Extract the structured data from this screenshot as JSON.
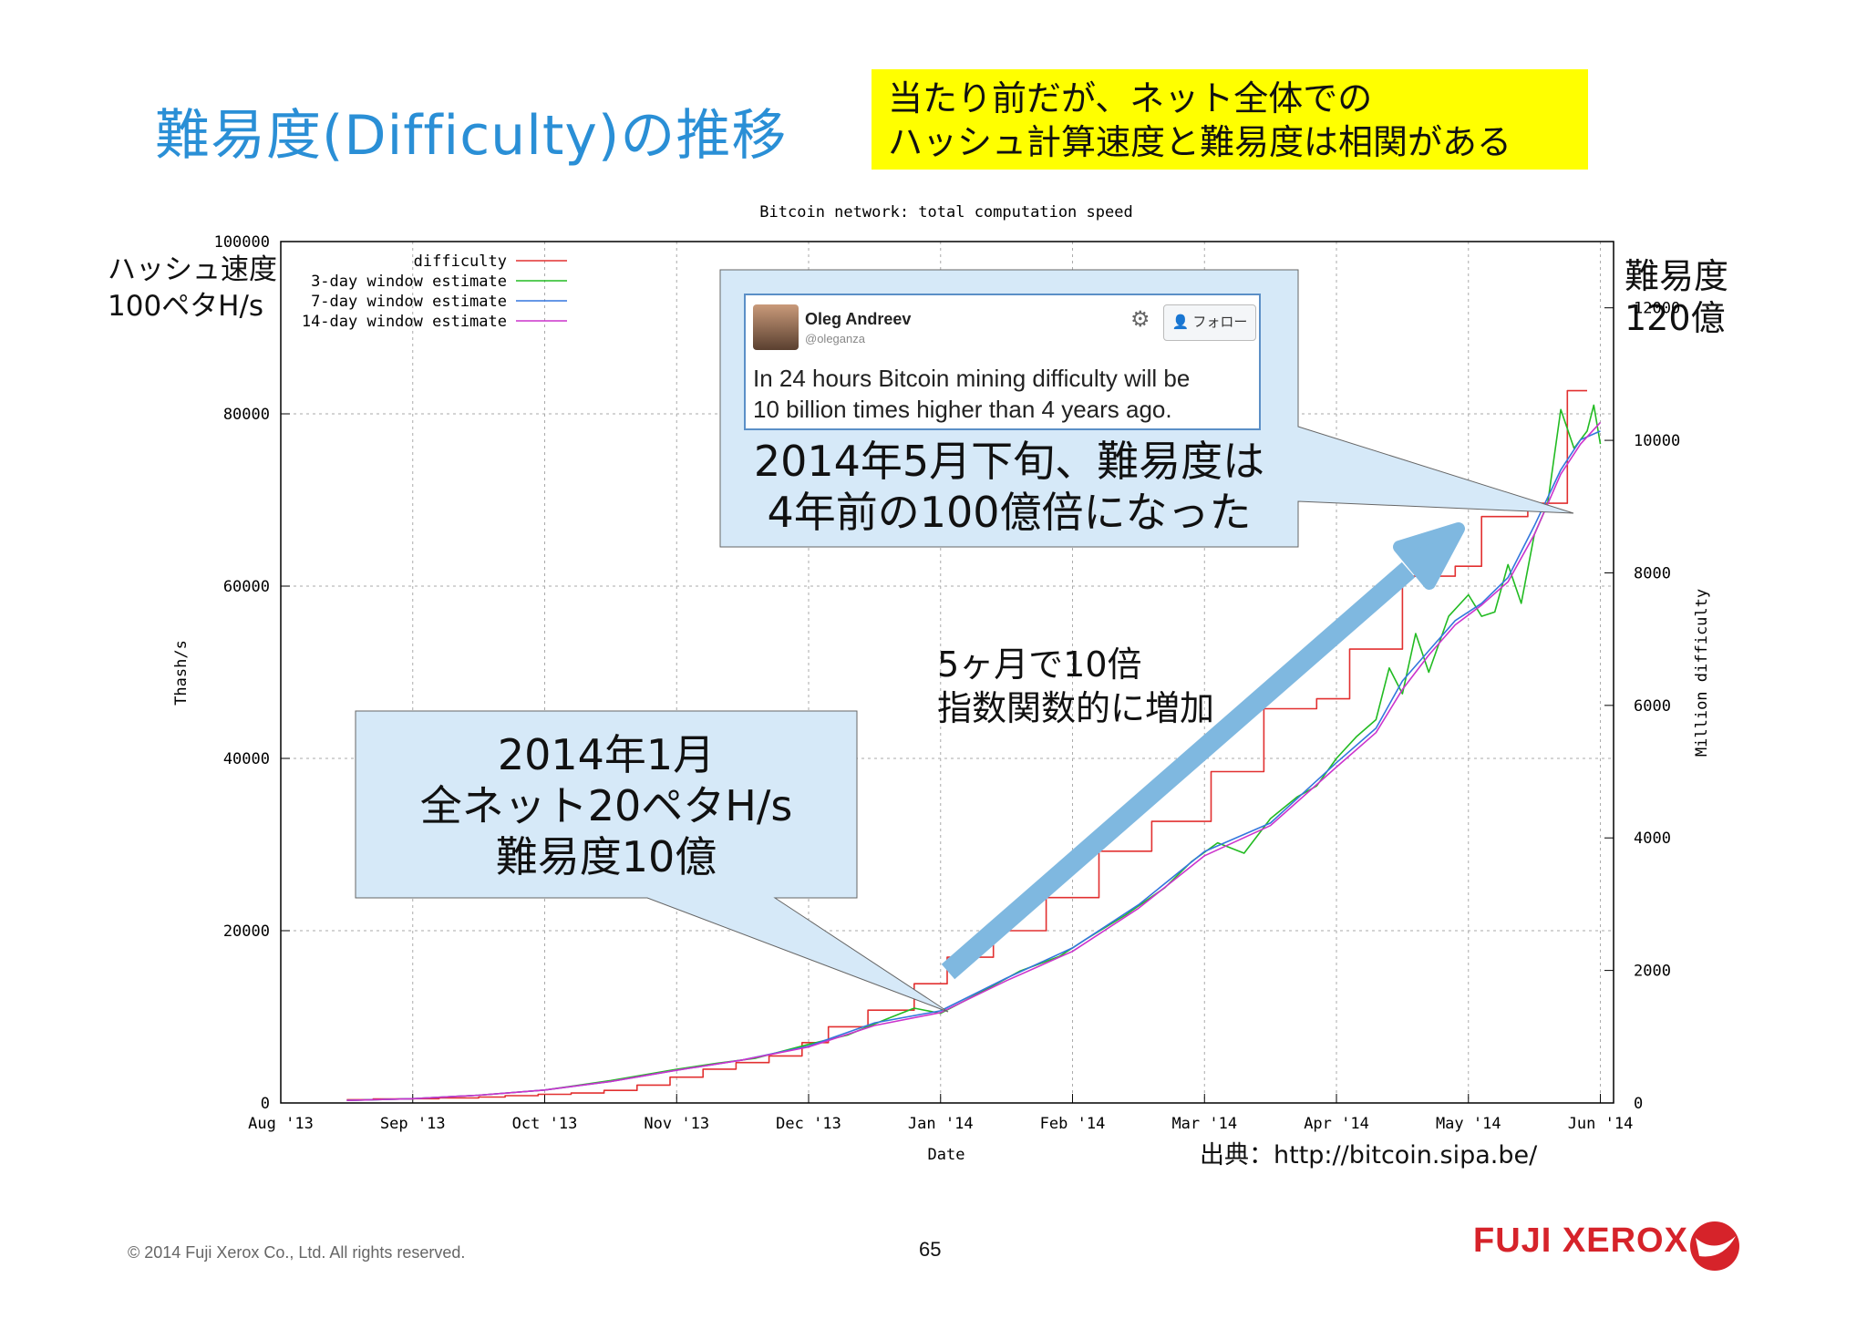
{
  "slide": {
    "title": "難易度(Difficulty)の推移",
    "note_lines": [
      "当たり前だが、ネット全体での",
      "ハッシュ計算速度と難易度は相関がある"
    ],
    "left_axis_note": [
      "ハッシュ速度",
      "100ペタH/s"
    ],
    "right_axis_note": [
      "難易度",
      "120億"
    ],
    "callout_jan": [
      "2014年1月",
      "全ネット20ペタH/s",
      "難易度10億"
    ],
    "callout_may": [
      "2014年5月下旬、難易度は",
      "4年前の100億倍になった"
    ],
    "arrow_note": [
      "5ヶ月で10倍",
      "指数関数的に増加"
    ],
    "source": "出典：http://bitcoin.sipa.be/",
    "copyright": "© 2014 Fuji Xerox Co., Ltd. All rights reserved.",
    "page_number": "65",
    "brand": "FUJI XEROX",
    "colors": {
      "title": "#2a8fd6",
      "note_bg": "#ffff00",
      "callout_bg": "#d6e9f8",
      "arrow": "#7fb8e0",
      "brand": "#d6232a"
    }
  },
  "tweet": {
    "name": "Oleg Andreev",
    "handle": "@oleganza",
    "follow_label": "フォロー",
    "text_lines": [
      "In 24 hours Bitcoin mining difficulty will be",
      "10 billion times higher than 4 years ago."
    ],
    "icons": [
      "avatar",
      "gear-icon",
      "follow-person-icon"
    ]
  },
  "chart_data": {
    "type": "line",
    "title": "Bitcoin network: total computation speed",
    "xlabel": "Date",
    "ylabel": "Thash/s",
    "y2label": "Million difficulty",
    "ylim": [
      0,
      100000
    ],
    "y2lim": [
      0,
      13000
    ],
    "x_ticks": [
      "Aug '13",
      "Sep '13",
      "Oct '13",
      "Nov '13",
      "Dec '13",
      "Jan '14",
      "Feb '14",
      "Mar '14",
      "Apr '14",
      "May '14",
      "Jun '14"
    ],
    "y_ticks": [
      "0",
      "20000",
      "40000",
      "60000",
      "80000",
      "100000"
    ],
    "y2_ticks": [
      "0",
      "2000",
      "4000",
      "6000",
      "8000",
      "10000",
      "12000"
    ],
    "grid": true,
    "legend_position": "top-left",
    "x_range_months": [
      0,
      10.1
    ],
    "series": [
      {
        "name": "difficulty",
        "axis": "right",
        "color": "#e23030",
        "step": true,
        "points": [
          [
            0.5,
            50
          ],
          [
            0.7,
            50
          ],
          [
            0.7,
            60
          ],
          [
            1.0,
            60
          ],
          [
            1.0,
            65
          ],
          [
            1.2,
            65
          ],
          [
            1.2,
            75
          ],
          [
            1.5,
            75
          ],
          [
            1.5,
            90
          ],
          [
            1.7,
            90
          ],
          [
            1.7,
            110
          ],
          [
            1.95,
            110
          ],
          [
            1.95,
            130
          ],
          [
            2.2,
            130
          ],
          [
            2.2,
            150
          ],
          [
            2.45,
            150
          ],
          [
            2.45,
            190
          ],
          [
            2.7,
            190
          ],
          [
            2.7,
            270
          ],
          [
            2.95,
            270
          ],
          [
            2.95,
            390
          ],
          [
            3.2,
            390
          ],
          [
            3.2,
            510
          ],
          [
            3.45,
            510
          ],
          [
            3.45,
            610
          ],
          [
            3.7,
            610
          ],
          [
            3.7,
            710
          ],
          [
            3.95,
            710
          ],
          [
            3.95,
            910
          ],
          [
            4.15,
            910
          ],
          [
            4.15,
            1150
          ],
          [
            4.45,
            1150
          ],
          [
            4.45,
            1400
          ],
          [
            4.8,
            1400
          ],
          [
            4.8,
            1800
          ],
          [
            5.05,
            1800
          ],
          [
            5.05,
            2200
          ],
          [
            5.4,
            2200
          ],
          [
            5.4,
            2600
          ],
          [
            5.8,
            2600
          ],
          [
            5.8,
            3100
          ],
          [
            6.2,
            3100
          ],
          [
            6.2,
            3800
          ],
          [
            6.6,
            3800
          ],
          [
            6.6,
            4250
          ],
          [
            7.05,
            4250
          ],
          [
            7.05,
            5000
          ],
          [
            7.45,
            5000
          ],
          [
            7.45,
            5950
          ],
          [
            7.85,
            5950
          ],
          [
            7.85,
            6100
          ],
          [
            8.1,
            6100
          ],
          [
            8.1,
            6850
          ],
          [
            8.5,
            6850
          ],
          [
            8.5,
            7950
          ],
          [
            8.9,
            7950
          ],
          [
            8.9,
            8100
          ],
          [
            9.1,
            8100
          ],
          [
            9.1,
            8850
          ],
          [
            9.45,
            8850
          ],
          [
            9.45,
            9050
          ],
          [
            9.75,
            9050
          ],
          [
            9.75,
            10750
          ],
          [
            9.9,
            10750
          ]
        ]
      },
      {
        "name": "3-day window estimate",
        "axis": "left",
        "color": "#22bb22",
        "points": [
          [
            0.5,
            300
          ],
          [
            1.0,
            500
          ],
          [
            1.5,
            900
          ],
          [
            2.0,
            1500
          ],
          [
            2.5,
            2600
          ],
          [
            3.0,
            3900
          ],
          [
            3.3,
            4600
          ],
          [
            3.6,
            5200
          ],
          [
            4.0,
            6800
          ],
          [
            4.3,
            7900
          ],
          [
            4.6,
            9800
          ],
          [
            4.8,
            11000
          ],
          [
            5.0,
            10400
          ],
          [
            5.3,
            12800
          ],
          [
            5.6,
            15300
          ],
          [
            5.9,
            17000
          ],
          [
            6.1,
            19000
          ],
          [
            6.4,
            21800
          ],
          [
            6.7,
            25000
          ],
          [
            6.9,
            28000
          ],
          [
            7.1,
            30200
          ],
          [
            7.3,
            29000
          ],
          [
            7.5,
            33000
          ],
          [
            7.7,
            35500
          ],
          [
            7.85,
            36800
          ],
          [
            8.0,
            40000
          ],
          [
            8.15,
            42500
          ],
          [
            8.3,
            44500
          ],
          [
            8.4,
            50500
          ],
          [
            8.5,
            47500
          ],
          [
            8.6,
            54500
          ],
          [
            8.7,
            50000
          ],
          [
            8.85,
            56500
          ],
          [
            9.0,
            59000
          ],
          [
            9.1,
            56500
          ],
          [
            9.2,
            57000
          ],
          [
            9.3,
            62500
          ],
          [
            9.4,
            58000
          ],
          [
            9.5,
            66000
          ],
          [
            9.6,
            69500
          ],
          [
            9.7,
            80500
          ],
          [
            9.8,
            76000
          ],
          [
            9.9,
            78000
          ],
          [
            9.95,
            81000
          ],
          [
            10.0,
            76500
          ]
        ]
      },
      {
        "name": "7-day window estimate",
        "axis": "left",
        "color": "#3377dd",
        "points": [
          [
            0.5,
            300
          ],
          [
            1.0,
            500
          ],
          [
            1.5,
            900
          ],
          [
            2.0,
            1500
          ],
          [
            2.5,
            2500
          ],
          [
            3.0,
            3800
          ],
          [
            3.5,
            5000
          ],
          [
            4.0,
            6600
          ],
          [
            4.5,
            9300
          ],
          [
            5.0,
            10700
          ],
          [
            5.5,
            14500
          ],
          [
            6.0,
            18000
          ],
          [
            6.5,
            23000
          ],
          [
            7.0,
            29200
          ],
          [
            7.5,
            32500
          ],
          [
            8.0,
            39500
          ],
          [
            8.3,
            43500
          ],
          [
            8.5,
            49000
          ],
          [
            8.7,
            52500
          ],
          [
            8.9,
            56000
          ],
          [
            9.1,
            58000
          ],
          [
            9.3,
            61000
          ],
          [
            9.5,
            67000
          ],
          [
            9.7,
            73500
          ],
          [
            9.85,
            77000
          ],
          [
            10.0,
            78000
          ]
        ]
      },
      {
        "name": "14-day window estimate",
        "axis": "left",
        "color": "#cc33cc",
        "points": [
          [
            0.5,
            300
          ],
          [
            1.0,
            500
          ],
          [
            1.5,
            900
          ],
          [
            2.0,
            1500
          ],
          [
            2.5,
            2500
          ],
          [
            3.0,
            3800
          ],
          [
            3.5,
            5000
          ],
          [
            4.0,
            6500
          ],
          [
            4.5,
            9000
          ],
          [
            5.0,
            10500
          ],
          [
            5.5,
            14200
          ],
          [
            6.0,
            17600
          ],
          [
            6.5,
            22600
          ],
          [
            7.0,
            28700
          ],
          [
            7.5,
            32200
          ],
          [
            8.0,
            39000
          ],
          [
            8.3,
            43000
          ],
          [
            8.5,
            48000
          ],
          [
            8.7,
            52000
          ],
          [
            8.9,
            55500
          ],
          [
            9.1,
            57800
          ],
          [
            9.3,
            60500
          ],
          [
            9.5,
            66000
          ],
          [
            9.7,
            73000
          ],
          [
            9.85,
            76500
          ],
          [
            10.0,
            79000
          ]
        ]
      }
    ]
  }
}
